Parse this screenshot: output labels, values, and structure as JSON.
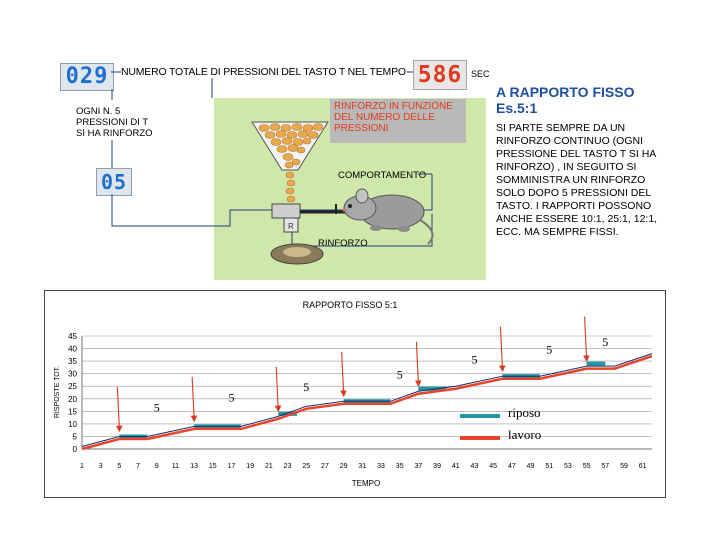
{
  "counter_presses": {
    "value": "029",
    "label": "NUMERO TOTALE DI PRESSIONI DEL TASTO T  NEL TEMPO"
  },
  "counter_time": {
    "value": "586",
    "unit": "SEC"
  },
  "counter_five": {
    "value": "05",
    "label": "OGNI N. 5\nPRESSIONI DI T\nSI HA RINFORZO"
  },
  "apparatus": {
    "note": "RINFORZO IN FUNZIONE DEL NUMERO DELLE PRESSIONI",
    "behaviour_label": "COMPORTAMENTO",
    "reinforcement_label": "RINFORZO",
    "key_label": "R"
  },
  "title": {
    "line1": "A RAPPORTO FISSO",
    "line2": "Es.5:1"
  },
  "description": "SI PARTE SEMPRE DA UN RINFORZO CONTINUO (OGNI PRESSIONE DEL TASTO T SI HA RINFORZO) , IN SEGUITO SI SOMMINISTRA UN RINFORZO SOLO DOPO 5 PRESSIONI DEL TASTO. I RAPPORTI POSSONO ANCHE  ESSERE 10:1, 25:1, 12:1, ECC. MA SEMPRE FISSI.",
  "colors": {
    "lavoro": "#e8442a",
    "riposo": "#1e98a8",
    "arrow": "#d63a1e",
    "lcd_blue": "#1f6fd0",
    "lcd_red": "#e03a22"
  },
  "chart_data": {
    "type": "line",
    "title": "RAPPORTO FISSO 5:1",
    "xlabel": "TEMPO",
    "ylabel": "RISPOSTE TOT.",
    "ylim": [
      0,
      45
    ],
    "yticks": [
      0,
      5,
      10,
      15,
      20,
      25,
      30,
      35,
      40,
      45
    ],
    "xticks": [
      1,
      3,
      5,
      7,
      9,
      11,
      13,
      15,
      17,
      19,
      21,
      23,
      25,
      27,
      29,
      31,
      33,
      35,
      37,
      39,
      41,
      43,
      45,
      47,
      49,
      51,
      53,
      55,
      57,
      59,
      61
    ],
    "series": [
      {
        "name": "lavoro",
        "x": [
          1,
          5,
          8,
          13,
          18,
          22,
          25,
          29,
          34,
          37,
          41,
          46,
          50,
          55,
          58,
          62
        ],
        "y": [
          0,
          4,
          4,
          8,
          8,
          12,
          16,
          18,
          18,
          22,
          24,
          28,
          28,
          32,
          32,
          37
        ]
      },
      {
        "name": "riposo",
        "segments": [
          [
            5,
            8,
            5
          ],
          [
            13,
            18,
            9
          ],
          [
            22,
            24,
            14
          ],
          [
            29,
            34,
            19
          ],
          [
            37,
            40,
            24
          ],
          [
            46,
            50,
            29
          ],
          [
            55,
            57,
            34
          ]
        ]
      }
    ],
    "arrows_x": [
      5,
      13,
      22,
      29,
      37,
      46,
      55
    ],
    "annotations": [
      {
        "text": "5",
        "x": 9,
        "y": 15
      },
      {
        "text": "5",
        "x": 17,
        "y": 19
      },
      {
        "text": "5",
        "x": 25,
        "y": 23
      },
      {
        "text": "5",
        "x": 35,
        "y": 28
      },
      {
        "text": "5",
        "x": 43,
        "y": 34
      },
      {
        "text": "5",
        "x": 51,
        "y": 38
      },
      {
        "text": "5",
        "x": 57,
        "y": 41
      }
    ],
    "legend": [
      {
        "name": "riposo"
      },
      {
        "name": "lavoro"
      }
    ]
  }
}
